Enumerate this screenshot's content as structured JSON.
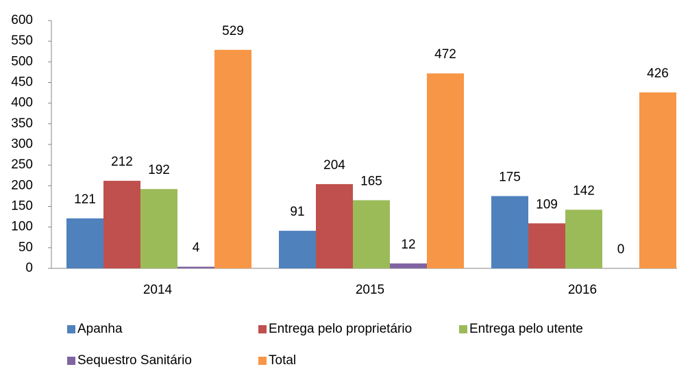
{
  "chart_data": {
    "type": "bar",
    "categories": [
      "2014",
      "2015",
      "2016"
    ],
    "series": [
      {
        "name": "Apanha",
        "color": "#4f81bd",
        "values": [
          121,
          91,
          175
        ]
      },
      {
        "name": "Entrega pelo proprietário",
        "color": "#c0504d",
        "values": [
          212,
          204,
          109
        ]
      },
      {
        "name": "Entrega pelo utente",
        "color": "#9bbb59",
        "values": [
          192,
          165,
          142
        ]
      },
      {
        "name": "Sequestro Sanitário",
        "color": "#8064a2",
        "values": [
          4,
          12,
          0
        ]
      },
      {
        "name": "Total",
        "color": "#f79646",
        "values": [
          529,
          472,
          426
        ]
      }
    ],
    "ylim": [
      0,
      600
    ],
    "yticks": [
      0,
      50,
      100,
      150,
      200,
      250,
      300,
      350,
      400,
      450,
      500,
      550,
      600
    ],
    "grid": false,
    "legend": "bottom"
  }
}
